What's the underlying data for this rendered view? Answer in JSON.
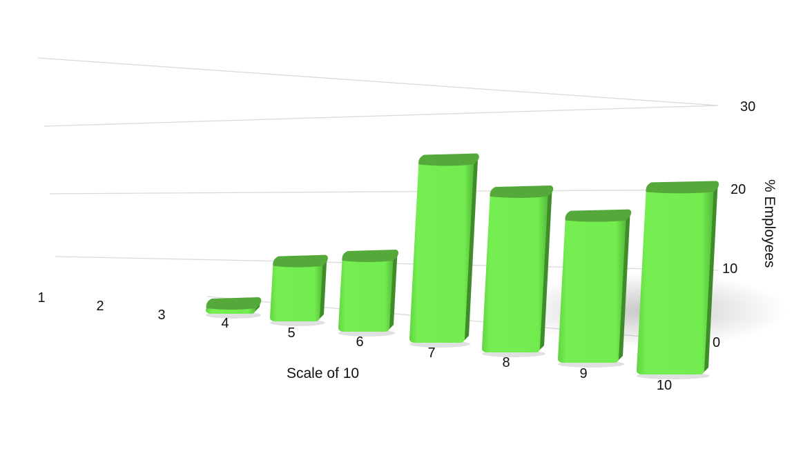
{
  "chart_data": {
    "type": "bar",
    "categories": [
      "1",
      "2",
      "3",
      "4",
      "5",
      "6",
      "7",
      "8",
      "9",
      "10"
    ],
    "values": [
      0,
      0,
      0,
      1,
      8,
      10,
      23,
      20,
      18,
      22
    ],
    "xlabel": "Scale of 10",
    "ylabel": "% Employees",
    "yticks": [
      "0",
      "10",
      "20",
      "30"
    ],
    "ylim": [
      0,
      30
    ],
    "grid": true,
    "bar_color": "#72ec4e",
    "bar_top_color": "#55a93a",
    "bar_side_color": "#3f8d2a"
  }
}
